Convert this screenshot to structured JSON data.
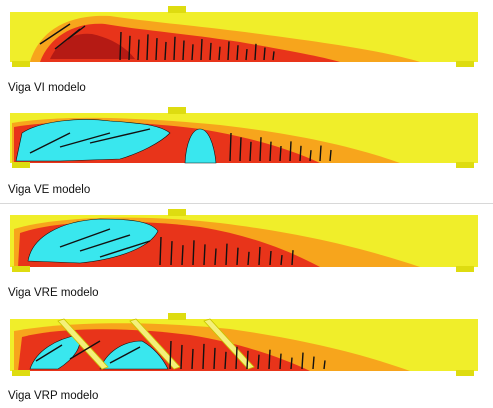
{
  "figure": {
    "panels": [
      {
        "id": "vi",
        "caption": "Viga VI modelo"
      },
      {
        "id": "ve",
        "caption": "Viga VE modelo"
      },
      {
        "id": "vre",
        "caption": "Viga VRE modelo"
      },
      {
        "id": "vrp",
        "caption": "Viga VRP modelo"
      }
    ],
    "colors": {
      "beam_base": "#f0ee2a",
      "contour_orange": "#f7a51c",
      "contour_red": "#e8341a",
      "contour_dark": "#b51a14",
      "crushed_zone": "#39e7ee",
      "crack": "#111111",
      "support": "#dedc10",
      "reinforcement_plate": "#f4f07a"
    }
  }
}
